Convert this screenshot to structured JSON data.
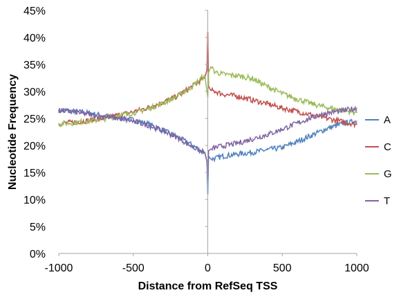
{
  "chart_data": {
    "type": "line",
    "title": "",
    "xlabel": "Distance from RefSeq TSS",
    "ylabel": "Nucleotide Frequency",
    "xlim": [
      -1000,
      1000
    ],
    "ylim": [
      0,
      45
    ],
    "x_ticks": [
      "-1000",
      "-500",
      "0",
      "500",
      "1000"
    ],
    "y_ticks": [
      "0%",
      "5%",
      "10%",
      "15%",
      "20%",
      "25%",
      "30%",
      "35%",
      "40%",
      "45%"
    ],
    "grid": "none",
    "legend_position": "right",
    "x": [
      -1000,
      -900,
      -800,
      -700,
      -600,
      -500,
      -400,
      -300,
      -200,
      -100,
      -50,
      -20,
      -5,
      0,
      5,
      20,
      50,
      100,
      200,
      300,
      400,
      500,
      600,
      700,
      800,
      900,
      1000
    ],
    "series": [
      {
        "name": "A",
        "color": "#4f81bd",
        "values": [
          26.5,
          26.3,
          26.0,
          25.5,
          25.2,
          24.7,
          24.0,
          22.8,
          21.5,
          20.0,
          19.0,
          18.6,
          17.0,
          11.0,
          18.0,
          17.5,
          17.6,
          18.0,
          18.4,
          18.7,
          19.2,
          19.6,
          20.7,
          21.9,
          23.1,
          24.0,
          24.5
        ]
      },
      {
        "name": "C",
        "color": "#c0504d",
        "values": [
          24.0,
          24.3,
          24.6,
          25.0,
          25.6,
          26.2,
          27.0,
          28.0,
          29.2,
          31.0,
          32.0,
          32.5,
          34.0,
          41.0,
          31.0,
          30.2,
          30.0,
          29.5,
          29.1,
          28.4,
          27.7,
          26.9,
          26.3,
          25.6,
          25.0,
          24.4,
          23.9
        ]
      },
      {
        "name": "G",
        "color": "#9bbb59",
        "values": [
          24.0,
          24.2,
          24.5,
          24.9,
          25.6,
          26.0,
          26.8,
          27.8,
          29.2,
          31.0,
          32.3,
          33.0,
          30.0,
          29.0,
          33.5,
          34.5,
          33.6,
          33.2,
          32.9,
          32.4,
          30.9,
          29.6,
          28.6,
          27.7,
          27.0,
          26.5,
          26.1
        ]
      },
      {
        "name": "T",
        "color": "#8064a2",
        "values": [
          26.5,
          26.2,
          25.8,
          25.3,
          25.0,
          24.5,
          23.7,
          22.7,
          21.4,
          19.7,
          19.0,
          18.7,
          17.0,
          14.0,
          19.0,
          19.3,
          19.6,
          19.9,
          20.4,
          21.2,
          22.0,
          23.0,
          24.1,
          25.2,
          26.0,
          26.4,
          26.9
        ]
      }
    ]
  }
}
